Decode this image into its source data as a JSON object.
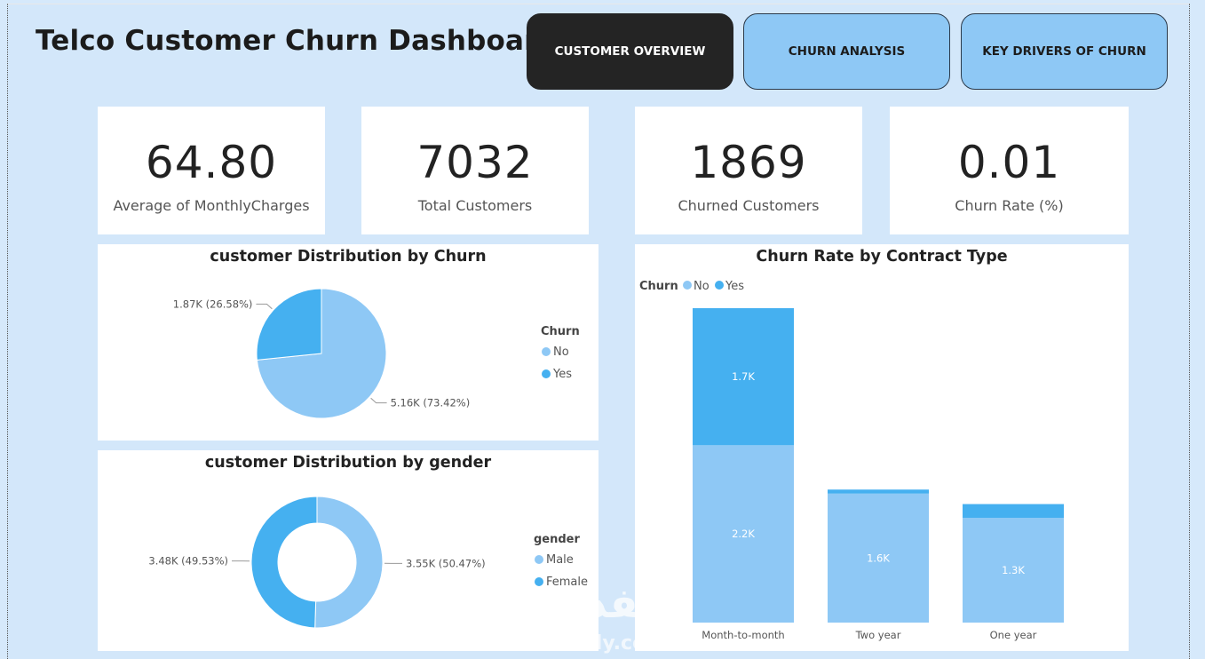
{
  "page": {
    "title": "Telco Customer Churn Dashboard"
  },
  "tabs": [
    {
      "label": "CUSTOMER OVERVIEW",
      "active": true
    },
    {
      "label": "CHURN ANALYSIS",
      "active": false
    },
    {
      "label": "KEY DRIVERS OF CHURN",
      "active": false
    }
  ],
  "kpis": [
    {
      "value": "64.80",
      "label": "Average of MonthlyCharges"
    },
    {
      "value": "7032",
      "label": "Total Customers"
    },
    {
      "value": "1869",
      "label": "Churned Customers"
    },
    {
      "value": "0.01",
      "label": "Churn Rate (%)"
    }
  ],
  "colors": {
    "no": "#8ec8f5",
    "yes": "#45b0f0",
    "male": "#8ec8f5",
    "female": "#45b0f0"
  },
  "watermark": {
    "main": "نفذلي",
    "sub": "nafezly.com"
  },
  "chart_data": [
    {
      "type": "pie",
      "title": "customer Distribution by Churn",
      "legend_title": "Churn",
      "legend_position": "right",
      "slices": [
        {
          "name": "No",
          "value": 5160,
          "label": "5.16K (73.42%)"
        },
        {
          "name": "Yes",
          "value": 1870,
          "label": "1.87K (26.58%)"
        }
      ]
    },
    {
      "type": "pie",
      "subtype": "donut",
      "title": "customer Distribution by gender",
      "legend_title": "gender",
      "legend_position": "right",
      "slices": [
        {
          "name": "Male",
          "value": 3550,
          "label": "3.55K (50.47%)"
        },
        {
          "name": "Female",
          "value": 3480,
          "label": "3.48K (49.53%)"
        }
      ]
    },
    {
      "type": "bar",
      "stacked": true,
      "title": "Churn Rate by Contract Type",
      "legend_title": "Churn",
      "legend_position": "top-left",
      "categories": [
        "Month-to-month",
        "Two year",
        "One year"
      ],
      "series": [
        {
          "name": "No",
          "values": [
            2200,
            1600,
            1300
          ],
          "labels": [
            "2.2K",
            "1.6K",
            "1.3K"
          ]
        },
        {
          "name": "Yes",
          "values": [
            1700,
            50,
            170
          ],
          "labels": [
            "1.7K",
            "",
            ""
          ]
        }
      ],
      "ylim": [
        0,
        3900
      ],
      "grid": false
    }
  ]
}
